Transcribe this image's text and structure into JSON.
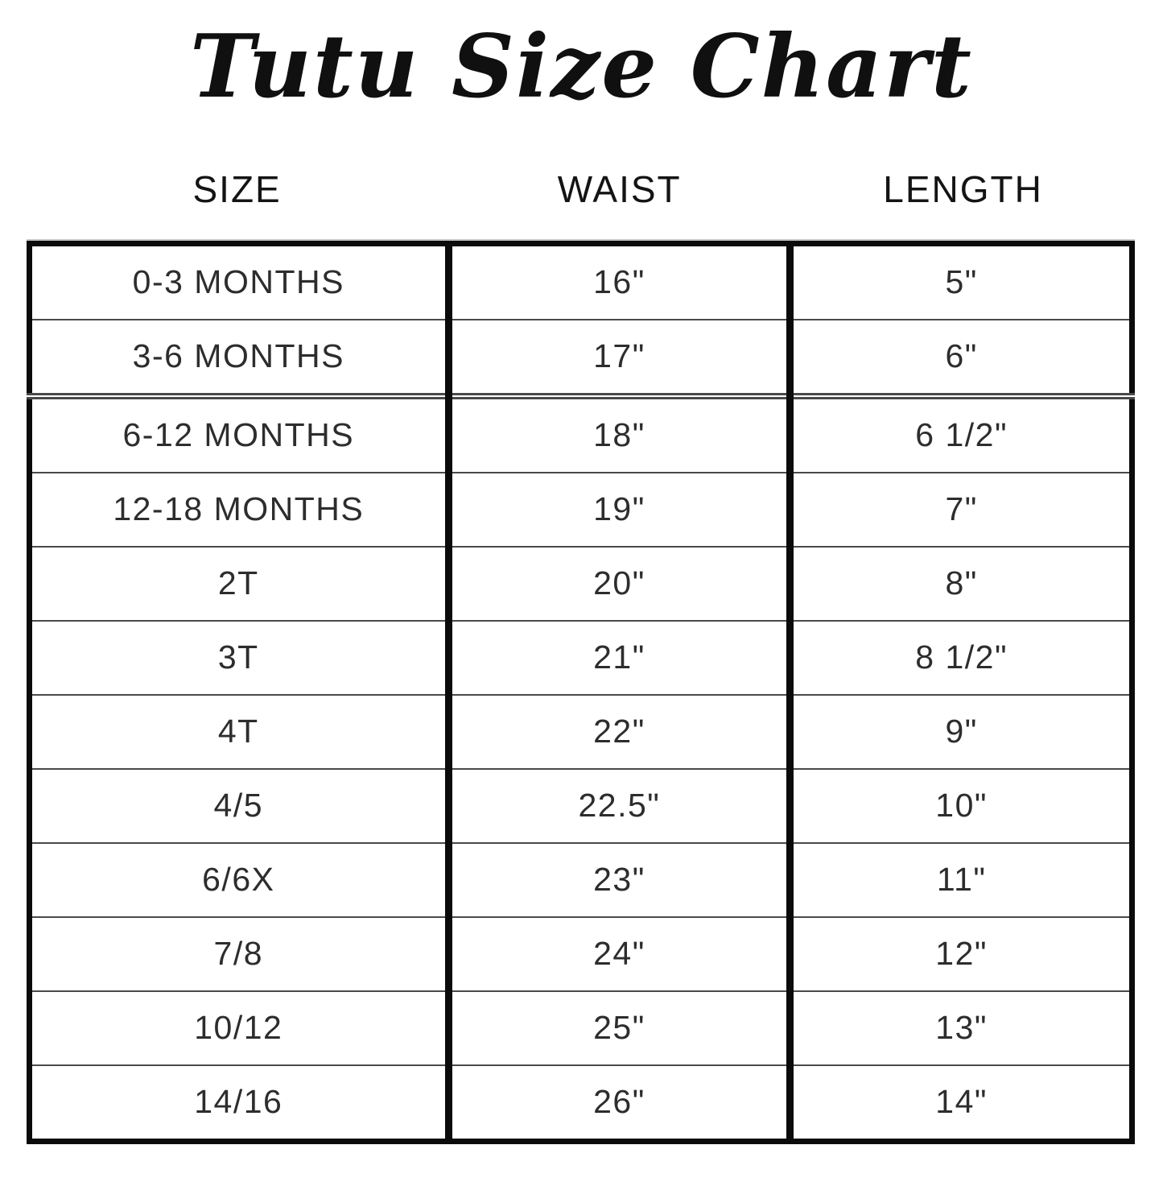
{
  "chart_data": {
    "type": "table",
    "title": "Tutu Size Chart",
    "columns": [
      "SIZE",
      "WAIST",
      "LENGTH"
    ],
    "rows": [
      [
        "0-3 MONTHS",
        "16\"",
        "5\""
      ],
      [
        "3-6 MONTHS",
        "17\"",
        "6\""
      ],
      [
        "6-12 MONTHS",
        "18\"",
        "6 1/2\""
      ],
      [
        "12-18 MONTHS",
        "19\"",
        "7\""
      ],
      [
        "2T",
        "20\"",
        "8\""
      ],
      [
        "3T",
        "21\"",
        "8 1/2\""
      ],
      [
        "4T",
        "22\"",
        "9\""
      ],
      [
        "4/5",
        "22.5\"",
        "10\""
      ],
      [
        "6/6X",
        "23\"",
        "11\""
      ],
      [
        "7/8",
        "24\"",
        "12\""
      ],
      [
        "10/12",
        "25\"",
        "13\""
      ],
      [
        "14/16",
        "26\"",
        "14\""
      ]
    ],
    "double_separator_before_row": 2,
    "layout": {
      "border_color": "#0b0b0b",
      "row_divider_color": "#4a4a4a",
      "text_color": "#2d2d2d",
      "background": "#ffffff"
    }
  }
}
